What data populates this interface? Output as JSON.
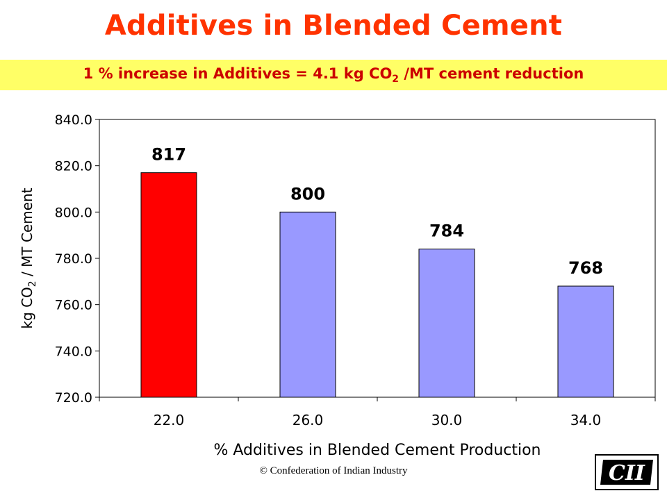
{
  "slide": {
    "title": "Additives in Blended Cement",
    "banner_main": "1 % increase in Additives = 4.1 kg CO",
    "banner_sub": "2",
    "banner_tail": " /MT cement reduction",
    "footer": "© Confederation of Indian Industry",
    "logo_text": "CII"
  },
  "colors": {
    "title": "#ff3300",
    "banner_bg": "#ffff66",
    "banner_text": "#cc0000",
    "highlight_bar": "#ff0000",
    "bar": "#9999ff"
  },
  "chart_data": {
    "type": "bar",
    "categories": [
      "22.0",
      "26.0",
      "30.0",
      "34.0"
    ],
    "values": [
      817,
      800,
      784,
      768
    ],
    "data_labels": [
      "817",
      "800",
      "784",
      "768"
    ],
    "highlight_index": 0,
    "xlabel": "% Additives in  Blended Cement Production",
    "ylabel_main": "kg CO",
    "ylabel_sub": "2",
    "ylabel_tail": " / MT Cement",
    "ylim": [
      720,
      840
    ],
    "yticks": [
      720,
      740,
      760,
      780,
      800,
      820,
      840
    ],
    "ytick_labels": [
      "720.0",
      "740.0",
      "760.0",
      "780.0",
      "800.0",
      "820.0",
      "840.0"
    ],
    "grid": false,
    "legend": "none"
  }
}
